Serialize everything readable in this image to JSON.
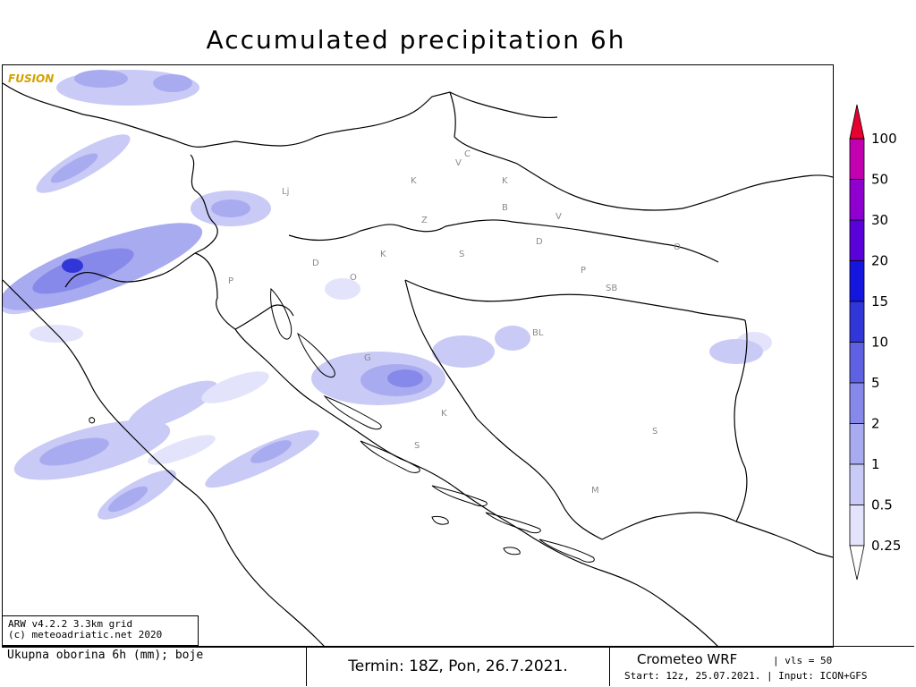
{
  "title": "Accumulated precipitation 6h",
  "watermark": "FUSION",
  "map": {
    "cities": [
      {
        "label": "Lj"
      },
      {
        "label": "K"
      },
      {
        "label": "V"
      },
      {
        "label": "C"
      },
      {
        "label": "K"
      },
      {
        "label": "B"
      },
      {
        "label": "Z"
      },
      {
        "label": "V"
      },
      {
        "label": "D"
      },
      {
        "label": "K"
      },
      {
        "label": "S"
      },
      {
        "label": "D"
      },
      {
        "label": "P"
      },
      {
        "label": "O"
      },
      {
        "label": "P"
      },
      {
        "label": "SB"
      },
      {
        "label": "O"
      },
      {
        "label": "BL"
      },
      {
        "label": "G"
      },
      {
        "label": "K"
      },
      {
        "label": "S"
      },
      {
        "label": "S"
      },
      {
        "label": "M"
      }
    ]
  },
  "legend": {
    "title": "",
    "levels": [
      "0.25",
      "0.5",
      "1",
      "2",
      "5",
      "10",
      "15",
      "20",
      "30",
      "50",
      "100"
    ],
    "colors": [
      "#f5f5ff",
      "#e3e3fb",
      "#c9caf6",
      "#a9abf0",
      "#8789ea",
      "#5e62e2",
      "#3136d8",
      "#1515e0",
      "#5a00d8",
      "#8f00d0",
      "#c200b0",
      "#e8002e"
    ]
  },
  "model_info": {
    "line1": "ARW v4.2.2 3.3km grid",
    "line2": "(c) meteoadriatic.net 2020"
  },
  "footer": {
    "left": "Ukupna oborina 6h (mm); boje",
    "termin": "Termin: 18Z, Pon, 26.7.2021.",
    "brand": "Crometeo WRF",
    "vls": "| vls = 50",
    "start": "Start: 12z, 25.07.2021. | Input: ICON+GFS"
  }
}
